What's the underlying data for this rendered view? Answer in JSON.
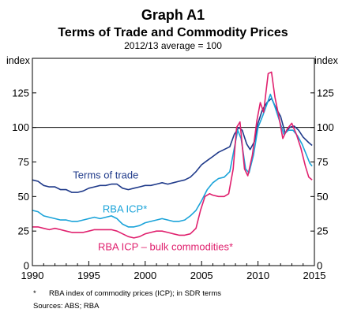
{
  "chart_data": {
    "type": "line",
    "title": "Graph A1",
    "subtitle": "Terms of Trade and Commodity Prices",
    "note": "2012/13 average = 100",
    "ylabel_left": "index",
    "ylabel_right": "index",
    "xlim": [
      1990,
      2015
    ],
    "ylim": [
      0,
      150
    ],
    "x_ticks": [
      "1990",
      "1995",
      "2000",
      "2005",
      "2010",
      "2015"
    ],
    "y_ticks": [
      "0",
      "25",
      "50",
      "75",
      "100",
      "125"
    ],
    "reference_line": 100,
    "series": [
      {
        "name": "Terms of trade",
        "color": "#1f3a8a",
        "points": [
          [
            1990.0,
            62
          ],
          [
            1990.5,
            61
          ],
          [
            1991.0,
            58
          ],
          [
            1991.5,
            57
          ],
          [
            1992.0,
            57
          ],
          [
            1992.5,
            55
          ],
          [
            1993.0,
            55
          ],
          [
            1993.5,
            53
          ],
          [
            1994.0,
            53
          ],
          [
            1994.5,
            54
          ],
          [
            1995.0,
            56
          ],
          [
            1995.5,
            57
          ],
          [
            1996.0,
            58
          ],
          [
            1996.5,
            58
          ],
          [
            1997.0,
            59
          ],
          [
            1997.5,
            59
          ],
          [
            1998.0,
            56
          ],
          [
            1998.5,
            55
          ],
          [
            1999.0,
            56
          ],
          [
            1999.5,
            57
          ],
          [
            2000.0,
            58
          ],
          [
            2000.5,
            58
          ],
          [
            2001.0,
            59
          ],
          [
            2001.5,
            60
          ],
          [
            2002.0,
            59
          ],
          [
            2002.5,
            60
          ],
          [
            2003.0,
            61
          ],
          [
            2003.5,
            62
          ],
          [
            2004.0,
            64
          ],
          [
            2004.5,
            68
          ],
          [
            2005.0,
            73
          ],
          [
            2005.5,
            76
          ],
          [
            2006.0,
            79
          ],
          [
            2006.5,
            82
          ],
          [
            2007.0,
            84
          ],
          [
            2007.5,
            86
          ],
          [
            2007.9,
            95
          ],
          [
            2008.3,
            100
          ],
          [
            2008.6,
            98
          ],
          [
            2009.0,
            88
          ],
          [
            2009.3,
            84
          ],
          [
            2009.7,
            90
          ],
          [
            2010.0,
            103
          ],
          [
            2010.4,
            113
          ],
          [
            2010.8,
            118
          ],
          [
            2011.2,
            121
          ],
          [
            2011.6,
            114
          ],
          [
            2012.0,
            108
          ],
          [
            2012.4,
            96
          ],
          [
            2012.8,
            100
          ],
          [
            2013.2,
            101
          ],
          [
            2013.6,
            98
          ],
          [
            2014.0,
            93
          ],
          [
            2014.5,
            89
          ],
          [
            2014.8,
            87
          ]
        ]
      },
      {
        "name": "RBA ICP*",
        "color": "#1aa3d9",
        "points": [
          [
            1990.0,
            40
          ],
          [
            1990.5,
            39
          ],
          [
            1991.0,
            36
          ],
          [
            1991.5,
            35
          ],
          [
            1992.0,
            34
          ],
          [
            1992.5,
            33
          ],
          [
            1993.0,
            33
          ],
          [
            1993.5,
            32
          ],
          [
            1994.0,
            32
          ],
          [
            1994.5,
            33
          ],
          [
            1995.0,
            34
          ],
          [
            1995.5,
            35
          ],
          [
            1996.0,
            34
          ],
          [
            1996.5,
            35
          ],
          [
            1997.0,
            36
          ],
          [
            1997.5,
            34
          ],
          [
            1998.0,
            30
          ],
          [
            1998.5,
            28
          ],
          [
            1999.0,
            28
          ],
          [
            1999.5,
            29
          ],
          [
            2000.0,
            31
          ],
          [
            2000.5,
            32
          ],
          [
            2001.0,
            33
          ],
          [
            2001.5,
            34
          ],
          [
            2002.0,
            33
          ],
          [
            2002.5,
            32
          ],
          [
            2003.0,
            32
          ],
          [
            2003.5,
            33
          ],
          [
            2004.0,
            36
          ],
          [
            2004.5,
            40
          ],
          [
            2005.0,
            47
          ],
          [
            2005.5,
            55
          ],
          [
            2006.0,
            60
          ],
          [
            2006.5,
            63
          ],
          [
            2007.0,
            64
          ],
          [
            2007.5,
            68
          ],
          [
            2007.9,
            85
          ],
          [
            2008.2,
            98
          ],
          [
            2008.5,
            92
          ],
          [
            2008.9,
            70
          ],
          [
            2009.2,
            67
          ],
          [
            2009.6,
            80
          ],
          [
            2010.0,
            100
          ],
          [
            2010.4,
            108
          ],
          [
            2010.8,
            117
          ],
          [
            2011.1,
            124
          ],
          [
            2011.5,
            115
          ],
          [
            2011.9,
            105
          ],
          [
            2012.3,
            95
          ],
          [
            2012.7,
            98
          ],
          [
            2013.1,
            98
          ],
          [
            2013.5,
            94
          ],
          [
            2013.9,
            88
          ],
          [
            2014.3,
            80
          ],
          [
            2014.6,
            74
          ],
          [
            2014.8,
            72
          ]
        ]
      },
      {
        "name": "RBA ICP – bulk commodities*",
        "color": "#e0206e",
        "points": [
          [
            1990.0,
            28
          ],
          [
            1990.5,
            28
          ],
          [
            1991.0,
            27
          ],
          [
            1991.5,
            26
          ],
          [
            1992.0,
            27
          ],
          [
            1992.5,
            26
          ],
          [
            1993.0,
            25
          ],
          [
            1993.5,
            24
          ],
          [
            1994.0,
            24
          ],
          [
            1994.5,
            24
          ],
          [
            1995.0,
            25
          ],
          [
            1995.5,
            26
          ],
          [
            1996.0,
            26
          ],
          [
            1996.5,
            26
          ],
          [
            1997.0,
            26
          ],
          [
            1997.5,
            25
          ],
          [
            1998.0,
            23
          ],
          [
            1998.5,
            21
          ],
          [
            1999.0,
            20
          ],
          [
            1999.5,
            21
          ],
          [
            2000.0,
            23
          ],
          [
            2000.5,
            24
          ],
          [
            2001.0,
            25
          ],
          [
            2001.5,
            25
          ],
          [
            2002.0,
            24
          ],
          [
            2002.5,
            23
          ],
          [
            2003.0,
            22
          ],
          [
            2003.5,
            22
          ],
          [
            2004.0,
            23
          ],
          [
            2004.5,
            27
          ],
          [
            2004.9,
            40
          ],
          [
            2005.3,
            50
          ],
          [
            2005.7,
            52
          ],
          [
            2006.0,
            51
          ],
          [
            2006.5,
            50
          ],
          [
            2007.0,
            50
          ],
          [
            2007.4,
            52
          ],
          [
            2007.8,
            70
          ],
          [
            2008.1,
            100
          ],
          [
            2008.4,
            104
          ],
          [
            2008.8,
            70
          ],
          [
            2009.1,
            65
          ],
          [
            2009.5,
            80
          ],
          [
            2009.9,
            105
          ],
          [
            2010.2,
            118
          ],
          [
            2010.5,
            111
          ],
          [
            2010.9,
            139
          ],
          [
            2011.2,
            140
          ],
          [
            2011.5,
            122
          ],
          [
            2011.8,
            110
          ],
          [
            2012.2,
            92
          ],
          [
            2012.6,
            99
          ],
          [
            2013.0,
            103
          ],
          [
            2013.4,
            95
          ],
          [
            2013.8,
            85
          ],
          [
            2014.2,
            72
          ],
          [
            2014.5,
            64
          ],
          [
            2014.8,
            62
          ]
        ]
      }
    ],
    "series_labels": [
      "Terms of trade",
      "RBA ICP*",
      "RBA ICP – bulk commodities*"
    ],
    "footnote_mark": "*",
    "footnote_text": "RBA index of commodity prices (ICP); in SDR terms",
    "sources": "Sources:   ABS; RBA"
  }
}
